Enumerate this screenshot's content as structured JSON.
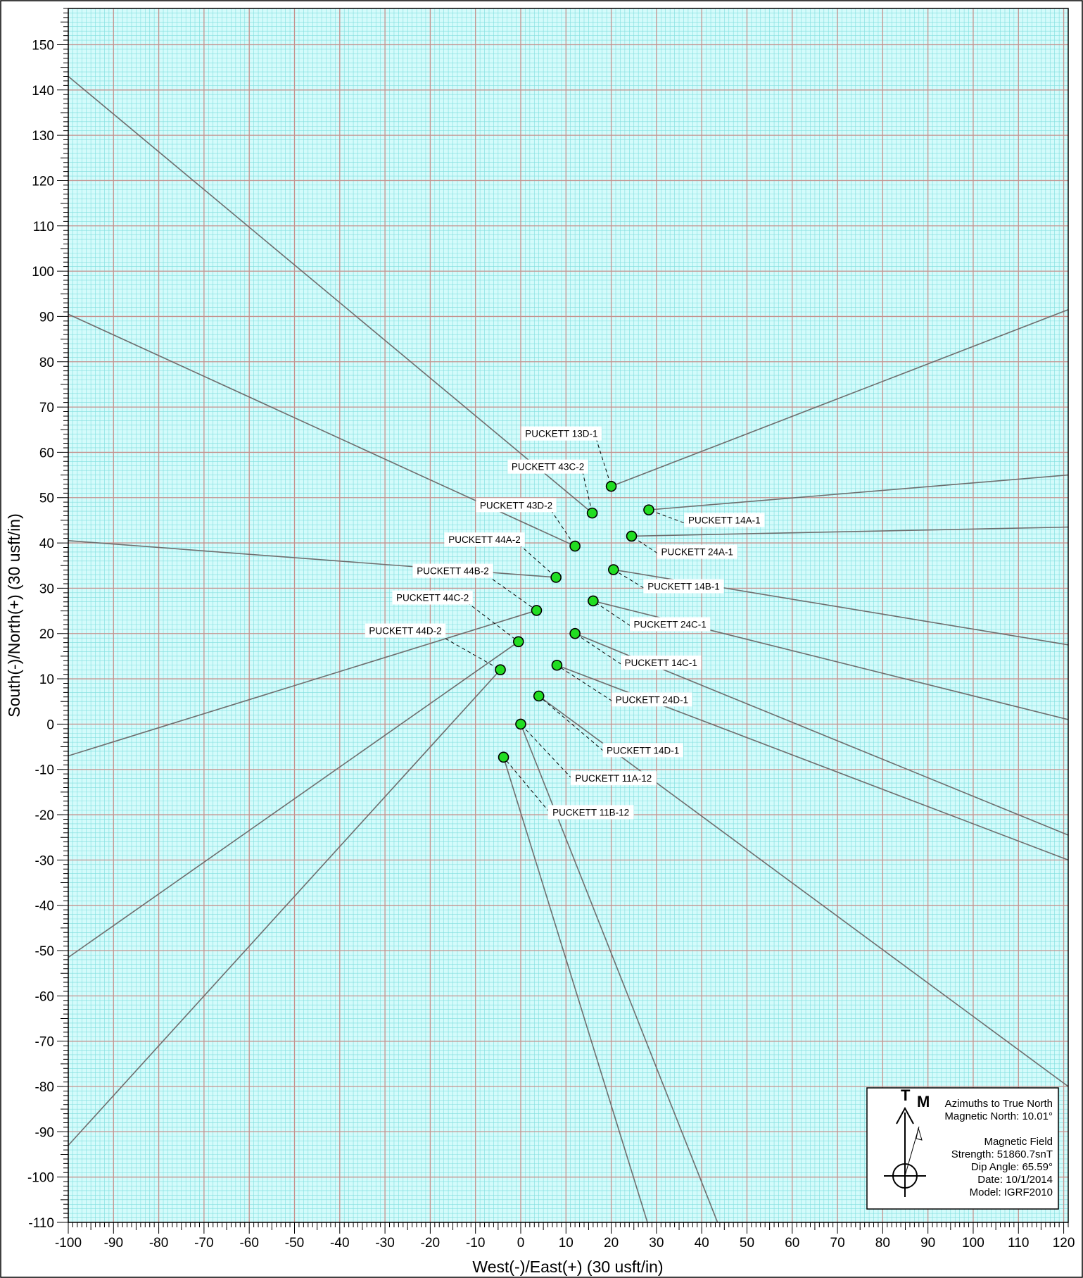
{
  "chart_data": {
    "type": "scatter",
    "xlabel": "West(-)/East(+) (30 usft/in)",
    "ylabel": "South(-)/North(+) (30 usft/in)",
    "xlim": [
      -100,
      121
    ],
    "ylim": [
      -110,
      158
    ],
    "x_ticks": [
      -100,
      -90,
      -80,
      -70,
      -60,
      -50,
      -40,
      -30,
      -20,
      -10,
      0,
      10,
      20,
      30,
      40,
      50,
      60,
      70,
      80,
      90,
      100,
      110,
      120
    ],
    "y_ticks": [
      150,
      140,
      130,
      120,
      110,
      100,
      90,
      80,
      70,
      60,
      50,
      40,
      30,
      20,
      10,
      0,
      -10,
      -20,
      -30,
      -40,
      -50,
      -60,
      -70,
      -80,
      -90,
      -100,
      -110
    ],
    "grid": true,
    "colors": {
      "background": "#d4fbfb",
      "minor_grid": "#7fdede",
      "major_grid": "#c4928e",
      "well_line": "#6e6e6e",
      "marker": "#22dd22"
    },
    "wells": [
      {
        "name": "PUCKETT  13D-1",
        "x": 20,
        "y": 52.5,
        "path_end": [
          121,
          91.5
        ]
      },
      {
        "name": "PUCKETT  43C-2",
        "x": 15.8,
        "y": 46.6,
        "path_end": [
          -100,
          143
        ]
      },
      {
        "name": "PUCKETT  14A-1",
        "x": 28.3,
        "y": 47.3,
        "path_end": [
          121,
          55
        ]
      },
      {
        "name": "PUCKETT  43D-2",
        "x": 12,
        "y": 39.3,
        "path_end": [
          -100,
          90.5
        ]
      },
      {
        "name": "PUCKETT  24A-1",
        "x": 24.5,
        "y": 41.5,
        "path_end": [
          121,
          43.5
        ]
      },
      {
        "name": "PUCKETT  44A-2",
        "x": 7.8,
        "y": 32.4,
        "path_end": [
          -100,
          40.5
        ]
      },
      {
        "name": "PUCKETT  14B-1",
        "x": 20.5,
        "y": 34.1,
        "path_end": [
          121,
          17.5
        ]
      },
      {
        "name": "PUCKETT  44B-2",
        "x": 3.5,
        "y": 25.1,
        "path_end": [
          -100,
          -7
        ]
      },
      {
        "name": "PUCKETT  24C-1",
        "x": 16,
        "y": 27.2,
        "path_end": [
          121,
          1
        ]
      },
      {
        "name": "PUCKETT  44C-2",
        "x": -0.5,
        "y": 18.2,
        "path_end": [
          -100,
          -51.5
        ]
      },
      {
        "name": "PUCKETT  14C-1",
        "x": 12,
        "y": 20,
        "path_end": [
          121,
          -24.5
        ]
      },
      {
        "name": "PUCKETT  44D-2",
        "x": -4.5,
        "y": 12,
        "path_end": [
          -100,
          -93
        ]
      },
      {
        "name": "PUCKETT  24D-1",
        "x": 8,
        "y": 13,
        "path_end": [
          121,
          -30
        ]
      },
      {
        "name": "PUCKETT  14D-1",
        "x": 4,
        "y": 6.2,
        "path_end": [
          121,
          -80
        ]
      },
      {
        "name": "PUCKETT  11A-12",
        "x": 0,
        "y": 0,
        "path_end": [
          43.5,
          -110
        ]
      },
      {
        "name": "PUCKETT  11B-12",
        "x": -3.8,
        "y": -7.3,
        "path_end": [
          28,
          -110
        ]
      }
    ],
    "labels": [
      {
        "text": "PUCKETT  13D-1",
        "x": 9,
        "y": 64
      },
      {
        "text": "PUCKETT  43C-2",
        "x": 6,
        "y": 56.7
      },
      {
        "text": "PUCKETT  14A-1",
        "x": 45,
        "y": 44.9
      },
      {
        "text": "PUCKETT  43D-2",
        "x": -1,
        "y": 48.2
      },
      {
        "text": "PUCKETT  24A-1",
        "x": 39,
        "y": 37.9
      },
      {
        "text": "PUCKETT  44A-2",
        "x": -8,
        "y": 40.6
      },
      {
        "text": "PUCKETT  14B-1",
        "x": 36,
        "y": 30.3
      },
      {
        "text": "PUCKETT  44B-2",
        "x": -15,
        "y": 33.7
      },
      {
        "text": "PUCKETT  24C-1",
        "x": 33,
        "y": 21.9
      },
      {
        "text": "PUCKETT  44C-2",
        "x": -19.5,
        "y": 27.8
      },
      {
        "text": "PUCKETT  14C-1",
        "x": 31,
        "y": 13.4
      },
      {
        "text": "PUCKETT  44D-2",
        "x": -25.5,
        "y": 20.5
      },
      {
        "text": "PUCKETT  24D-1",
        "x": 29,
        "y": 5.3
      },
      {
        "text": "PUCKETT  14D-1",
        "x": 27,
        "y": -5.9
      },
      {
        "text": "PUCKETT  11A-12",
        "x": 20.5,
        "y": -12.1
      },
      {
        "text": "PUCKETT  11B-12",
        "x": 15.5,
        "y": -19.6
      }
    ]
  },
  "legend": {
    "true_north_label": "T",
    "magnetic_label": "M",
    "lines": [
      "Azimuths to True North",
      "Magnetic North: 10.01°",
      "",
      "Magnetic Field",
      "Strength: 51860.7snT",
      "Dip Angle: 65.59°",
      "Date: 10/1/2014",
      "Model: IGRF2010"
    ]
  }
}
